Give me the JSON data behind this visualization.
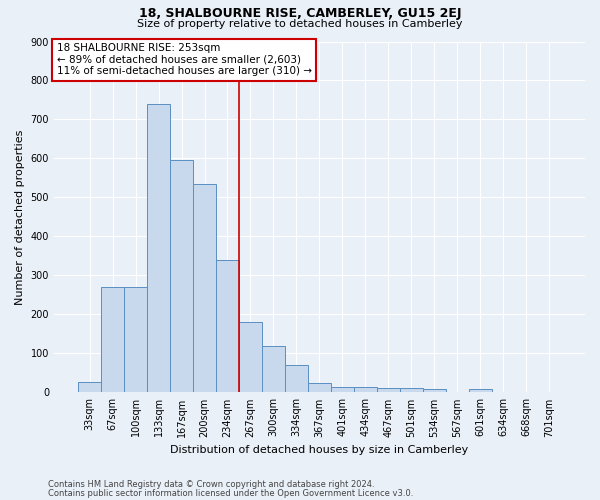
{
  "title": "18, SHALBOURNE RISE, CAMBERLEY, GU15 2EJ",
  "subtitle": "Size of property relative to detached houses in Camberley",
  "xlabel": "Distribution of detached houses by size in Camberley",
  "ylabel": "Number of detached properties",
  "footnote1": "Contains HM Land Registry data © Crown copyright and database right 2024.",
  "footnote2": "Contains public sector information licensed under the Open Government Licence v3.0.",
  "categories": [
    "33sqm",
    "67sqm",
    "100sqm",
    "133sqm",
    "167sqm",
    "200sqm",
    "234sqm",
    "267sqm",
    "300sqm",
    "334sqm",
    "367sqm",
    "401sqm",
    "434sqm",
    "467sqm",
    "501sqm",
    "534sqm",
    "567sqm",
    "601sqm",
    "634sqm",
    "668sqm",
    "701sqm"
  ],
  "values": [
    27,
    270,
    270,
    740,
    595,
    535,
    340,
    180,
    120,
    70,
    25,
    15,
    15,
    12,
    12,
    10,
    0,
    10,
    0,
    0,
    0
  ],
  "bar_color": "#c9d9ed",
  "bar_edge_color": "#5a8fc3",
  "background_color": "#eaf0f8",
  "grid_color": "#ffffff",
  "annotation_box_color": "#ffffff",
  "annotation_box_edge": "#cc0000",
  "red_line_color": "#cc0000",
  "red_line_index": 6.5,
  "property_size": "253sqm",
  "property_name": "18 SHALBOURNE RISE",
  "pct_smaller": 89,
  "count_smaller": 2603,
  "pct_larger": 11,
  "count_larger": 310,
  "ylim": [
    0,
    900
  ],
  "yticks": [
    0,
    100,
    200,
    300,
    400,
    500,
    600,
    700,
    800,
    900
  ],
  "title_fontsize": 9,
  "subtitle_fontsize": 8,
  "ylabel_fontsize": 8,
  "xlabel_fontsize": 8,
  "tick_fontsize": 7,
  "ann_fontsize": 7.5,
  "footnote_fontsize": 6
}
